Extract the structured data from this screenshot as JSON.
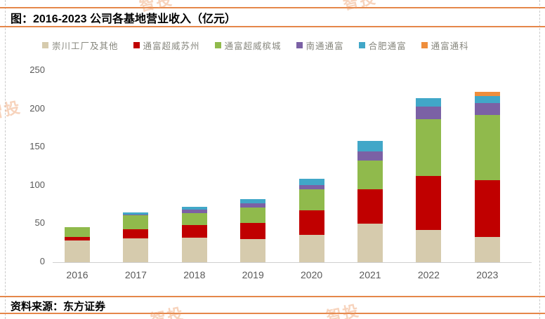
{
  "figure": {
    "title": "图：2016-2023 公司各基地营业收入（亿元）",
    "source_label": "资料来源：东方证券"
  },
  "watermark": {
    "text": "智投"
  },
  "colors": {
    "rule_line_orange": "#e5874a",
    "axis_text_gray": "#595959",
    "legend_text_gray": "#87877e",
    "baseline_gray": "#cfcfcf"
  },
  "chart_data": {
    "type": "bar",
    "stacked": true,
    "title": "2016-2023 公司各基地营业收入（亿元）",
    "unit": "亿元",
    "categories": [
      "2016",
      "2017",
      "2018",
      "2019",
      "2020",
      "2021",
      "2022",
      "2023"
    ],
    "series": [
      {
        "name": "崇川工厂及其他",
        "color": "#d6cbad",
        "values": [
          28,
          31,
          32,
          30,
          36,
          50,
          42,
          33
        ]
      },
      {
        "name": "通富超威苏州",
        "color": "#c00000",
        "values": [
          5,
          12,
          16.5,
          21,
          32,
          45,
          71,
          74
        ]
      },
      {
        "name": "通富超威槟城",
        "color": "#90ba4c",
        "values": [
          13,
          19,
          15.5,
          20,
          27,
          38,
          74,
          85
        ]
      },
      {
        "name": "南通通富",
        "color": "#7b61a5",
        "values": [
          0,
          0.7,
          4.5,
          5.5,
          6,
          12,
          16,
          16
        ]
      },
      {
        "name": "合肥通富",
        "color": "#41a7c8",
        "values": [
          0,
          2.5,
          3.5,
          5.5,
          8,
          13,
          11,
          9
        ]
      },
      {
        "name": "通富通科",
        "color": "#ef8e3c",
        "values": [
          0,
          0,
          0,
          0,
          0,
          0,
          0,
          5.5
        ]
      }
    ],
    "totals": [
      46,
      65.2,
      72,
      82,
      109,
      158,
      214,
      222.5
    ],
    "ylim": [
      0,
      250
    ],
    "yticks": [
      0,
      50,
      100,
      150,
      200,
      250
    ],
    "grid": false,
    "legend_position": "top",
    "xlabel": "",
    "ylabel": ""
  }
}
